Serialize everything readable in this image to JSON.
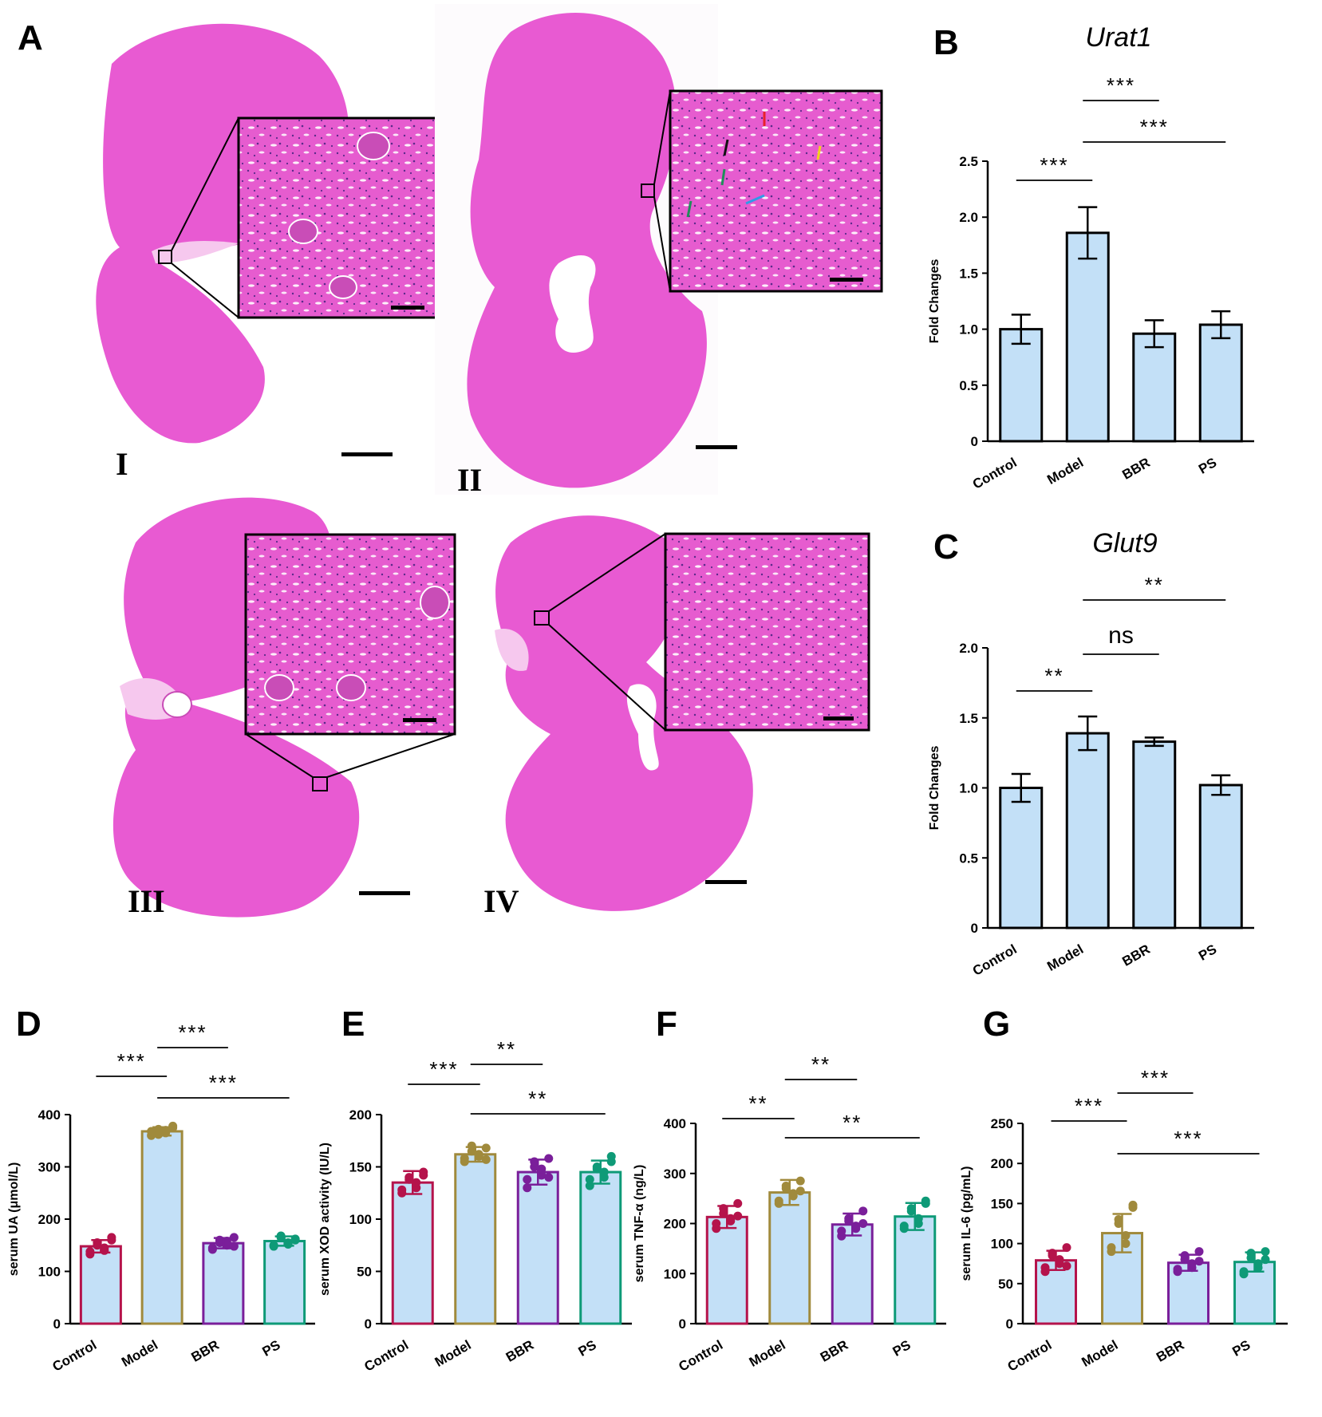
{
  "panels": {
    "A": "A",
    "B": "B",
    "C": "C",
    "D": "D",
    "E": "E",
    "F": "F",
    "G": "G"
  },
  "histology": {
    "section_labels": [
      "I",
      "II",
      "III",
      "IV"
    ],
    "tissue_color": "#e85ad2",
    "arrow_colors": [
      "#e8222a",
      "#111111",
      "#f2d21b",
      "#1f8f5a",
      "#2f9be8",
      "#1f8f5a"
    ]
  },
  "colors": {
    "bar_fill": "#c3e0f7",
    "Control": "#b5134b",
    "Model": "#a08a3c",
    "BBR": "#7a1f9a",
    "PS": "#0e9a77"
  },
  "chart_data": [
    {
      "id": "B",
      "type": "bar",
      "title": "Urat1",
      "ylabel": "Fold Changes",
      "categories": [
        "Control",
        "Model",
        "BBR",
        "PS"
      ],
      "values": [
        1.0,
        1.86,
        0.96,
        1.04
      ],
      "errors": [
        0.13,
        0.23,
        0.12,
        0.12
      ],
      "ylim": [
        0,
        2.5
      ],
      "yticks": [
        0,
        0.5,
        1.0,
        1.5,
        2.0,
        2.5
      ],
      "ytick_labels": [
        "0",
        "0.5",
        "1.0",
        "1.5",
        "2.0",
        "2.5"
      ],
      "significance": [
        {
          "from": 0,
          "to": 1,
          "label": "***"
        },
        {
          "from": 1,
          "to": 2,
          "label": "***"
        },
        {
          "from": 1,
          "to": 3,
          "label": "***"
        }
      ]
    },
    {
      "id": "C",
      "type": "bar",
      "title": "Glut9",
      "ylabel": "Fold Changes",
      "categories": [
        "Control",
        "Model",
        "BBR",
        "PS"
      ],
      "values": [
        1.0,
        1.39,
        1.33,
        1.02
      ],
      "errors": [
        0.1,
        0.12,
        0.03,
        0.07
      ],
      "ylim": [
        0,
        2.0
      ],
      "yticks": [
        0,
        0.5,
        1.0,
        1.5,
        2.0
      ],
      "ytick_labels": [
        "0",
        "0.5",
        "1.0",
        "1.5",
        "2.0"
      ],
      "significance": [
        {
          "from": 0,
          "to": 1,
          "label": "**"
        },
        {
          "from": 1,
          "to": 2,
          "label": "ns"
        },
        {
          "from": 1,
          "to": 3,
          "label": "**"
        }
      ]
    },
    {
      "id": "D",
      "type": "bar",
      "title": "",
      "ylabel": "serum UA (μmol/L)",
      "categories": [
        "Control",
        "Model",
        "BBR",
        "PS"
      ],
      "values": [
        148,
        368,
        154,
        158
      ],
      "errors": [
        12,
        8,
        10,
        9
      ],
      "points": [
        [
          133,
          150,
          145,
          160,
          138,
          155,
          140,
          165
        ],
        [
          360,
          372,
          365,
          375,
          368,
          362,
          370,
          378
        ],
        [
          142,
          160,
          150,
          165,
          145,
          155,
          158,
          148
        ],
        [
          150,
          165,
          155,
          160,
          148,
          168,
          152,
          162
        ]
      ],
      "ylim": [
        0,
        400
      ],
      "yticks": [
        0,
        100,
        200,
        300,
        400
      ],
      "ytick_labels": [
        "0",
        "100",
        "200",
        "300",
        "400"
      ],
      "significance": [
        {
          "from": 0,
          "to": 1,
          "label": "***"
        },
        {
          "from": 1,
          "to": 2,
          "label": "***"
        },
        {
          "from": 1,
          "to": 3,
          "label": "***"
        }
      ]
    },
    {
      "id": "E",
      "type": "bar",
      "title": "",
      "ylabel": "serum XOD activity (IU/L)",
      "categories": [
        "Control",
        "Model",
        "BBR",
        "PS"
      ],
      "values": [
        135,
        162,
        145,
        145
      ],
      "errors": [
        11,
        7,
        12,
        11
      ],
      "points": [
        [
          125,
          140,
          130,
          145,
          128,
          138,
          135,
          142
        ],
        [
          155,
          165,
          160,
          168,
          158,
          170,
          162,
          157
        ],
        [
          130,
          150,
          142,
          158,
          138,
          155,
          148,
          140
        ],
        [
          132,
          150,
          140,
          160,
          138,
          148,
          145,
          155
        ]
      ],
      "ylim": [
        0,
        200
      ],
      "yticks": [
        0,
        50,
        100,
        150,
        200
      ],
      "ytick_labels": [
        "0",
        "50",
        "100",
        "150",
        "200"
      ],
      "significance": [
        {
          "from": 0,
          "to": 1,
          "label": "***"
        },
        {
          "from": 1,
          "to": 2,
          "label": "**"
        },
        {
          "from": 1,
          "to": 3,
          "label": "**"
        }
      ]
    },
    {
      "id": "F",
      "type": "bar",
      "title": "",
      "ylabel": "serum TNF-α (ng/L)",
      "categories": [
        "Control",
        "Model",
        "BBR",
        "PS"
      ],
      "values": [
        213,
        262,
        198,
        214
      ],
      "errors": [
        22,
        25,
        22,
        27
      ],
      "points": [
        [
          190,
          220,
          205,
          240,
          200,
          230,
          210,
          215
        ],
        [
          240,
          270,
          255,
          285,
          245,
          275,
          260,
          265
        ],
        [
          175,
          210,
          190,
          225,
          185,
          205,
          195,
          200
        ],
        [
          190,
          230,
          200,
          245,
          195,
          225,
          210,
          240
        ]
      ],
      "ylim": [
        0,
        400
      ],
      "yticks": [
        0,
        100,
        200,
        300,
        400
      ],
      "ytick_labels": [
        "0",
        "100",
        "200",
        "300",
        "400"
      ],
      "significance": [
        {
          "from": 0,
          "to": 1,
          "label": "**"
        },
        {
          "from": 1,
          "to": 2,
          "label": "**"
        },
        {
          "from": 1,
          "to": 3,
          "label": "**"
        }
      ]
    },
    {
      "id": "G",
      "type": "bar",
      "title": "",
      "ylabel": "serum IL-6 (pg/mL)",
      "categories": [
        "Control",
        "Model",
        "BBR",
        "PS"
      ],
      "values": [
        79,
        113,
        76,
        77
      ],
      "errors": [
        12,
        24,
        10,
        12
      ],
      "points": [
        [
          65,
          85,
          75,
          95,
          70,
          88,
          80,
          72
        ],
        [
          90,
          130,
          100,
          145,
          95,
          125,
          110,
          148
        ],
        [
          65,
          85,
          70,
          90,
          68,
          80,
          75,
          78
        ],
        [
          62,
          88,
          70,
          90,
          65,
          82,
          75,
          80
        ]
      ],
      "ylim": [
        0,
        250
      ],
      "yticks": [
        0,
        50,
        100,
        150,
        200,
        250
      ],
      "ytick_labels": [
        "0",
        "50",
        "100",
        "150",
        "200",
        "250"
      ],
      "significance": [
        {
          "from": 0,
          "to": 1,
          "label": "***"
        },
        {
          "from": 1,
          "to": 2,
          "label": "***"
        },
        {
          "from": 1,
          "to": 3,
          "label": "***"
        }
      ]
    }
  ]
}
